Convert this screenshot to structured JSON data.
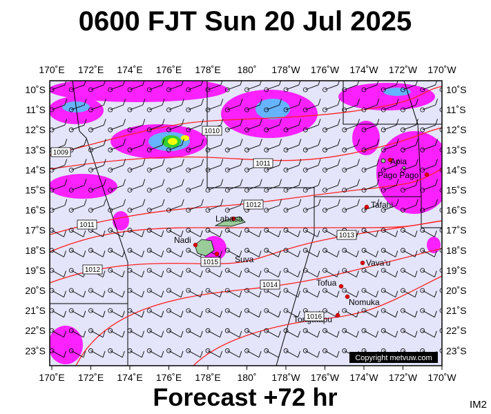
{
  "header": {
    "title": "0600 FJT Sun 20 Jul 2025"
  },
  "map": {
    "lon_labels": [
      "170˚E",
      "172˚E",
      "174˚E",
      "176˚E",
      "178˚E",
      "180˚",
      "178˚W",
      "176˚W",
      "174˚W",
      "172˚W",
      "170˚W"
    ],
    "lat_labels": [
      "10˚S",
      "11˚S",
      "12˚S",
      "13˚S",
      "14˚S",
      "15˚S",
      "16˚S",
      "17˚S",
      "18˚S",
      "19˚S",
      "20˚S",
      "21˚S",
      "22˚S",
      "23˚S"
    ],
    "places": [
      "Labasa",
      "Nadi",
      "Suva",
      "Apia",
      "Pago Pago",
      "Tafahi",
      "Vava'u",
      "Tofua",
      "Nomuka",
      "Tongatapu"
    ],
    "isobars": [
      "1009",
      "1010",
      "1011",
      "1012",
      "1011",
      "1013",
      "1015",
      "1012",
      "1014",
      "1016"
    ],
    "copyright": "Copyright metvuw.com"
  },
  "footer": {
    "caption": "Forecast +72 hr",
    "code": "IM2"
  }
}
